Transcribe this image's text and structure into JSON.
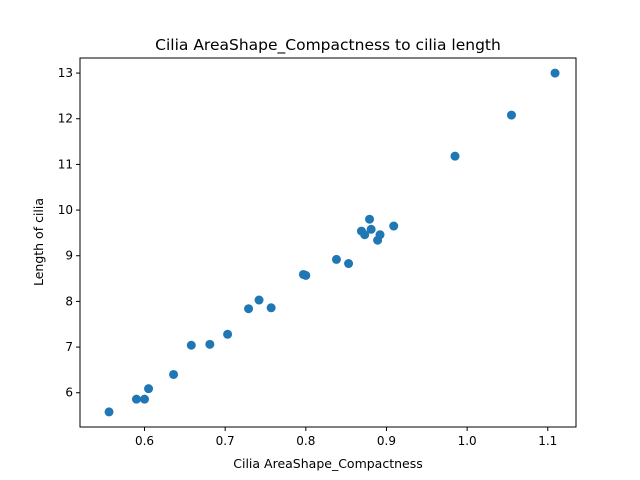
{
  "chart_data": {
    "type": "scatter",
    "title": "Cilia AreaShape_Compactness to cilia length",
    "xlabel": "Cilia AreaShape_Compactness",
    "ylabel": "Length of cilia",
    "xlim": [
      0.52,
      1.135
    ],
    "ylim": [
      5.25,
      13.33
    ],
    "grid": false,
    "marker_color": "#1f77b4",
    "x_ticks": [
      {
        "value": 0.6,
        "label": "0.6"
      },
      {
        "value": 0.7,
        "label": "0.7"
      },
      {
        "value": 0.8,
        "label": "0.8"
      },
      {
        "value": 0.9,
        "label": "0.9"
      },
      {
        "value": 1.0,
        "label": "1.0"
      },
      {
        "value": 1.1,
        "label": "1.1"
      }
    ],
    "y_ticks": [
      {
        "value": 6,
        "label": "6"
      },
      {
        "value": 7,
        "label": "7"
      },
      {
        "value": 8,
        "label": "8"
      },
      {
        "value": 9,
        "label": "9"
      },
      {
        "value": 10,
        "label": "10"
      },
      {
        "value": 11,
        "label": "11"
      },
      {
        "value": 12,
        "label": "12"
      },
      {
        "value": 13,
        "label": "13"
      }
    ],
    "points": [
      {
        "x": 0.556,
        "y": 5.58
      },
      {
        "x": 0.59,
        "y": 5.86
      },
      {
        "x": 0.6,
        "y": 5.86
      },
      {
        "x": 0.605,
        "y": 6.09
      },
      {
        "x": 0.636,
        "y": 6.4
      },
      {
        "x": 0.658,
        "y": 7.04
      },
      {
        "x": 0.681,
        "y": 7.06
      },
      {
        "x": 0.703,
        "y": 7.28
      },
      {
        "x": 0.729,
        "y": 7.84
      },
      {
        "x": 0.742,
        "y": 8.03
      },
      {
        "x": 0.757,
        "y": 7.86
      },
      {
        "x": 0.797,
        "y": 8.59
      },
      {
        "x": 0.8,
        "y": 8.57
      },
      {
        "x": 0.838,
        "y": 8.92
      },
      {
        "x": 0.853,
        "y": 8.83
      },
      {
        "x": 0.869,
        "y": 9.54
      },
      {
        "x": 0.873,
        "y": 9.46
      },
      {
        "x": 0.879,
        "y": 9.8
      },
      {
        "x": 0.881,
        "y": 9.58
      },
      {
        "x": 0.889,
        "y": 9.34
      },
      {
        "x": 0.892,
        "y": 9.46
      },
      {
        "x": 0.909,
        "y": 9.65
      },
      {
        "x": 0.985,
        "y": 11.18
      },
      {
        "x": 1.055,
        "y": 12.08
      },
      {
        "x": 1.109,
        "y": 13.0
      }
    ]
  }
}
